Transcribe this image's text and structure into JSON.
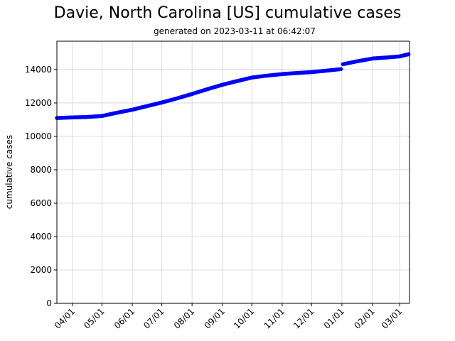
{
  "chart_data": {
    "type": "line",
    "title": "Davie, North Carolina [US] cumulative cases",
    "subtitle": "generated on 2023-03-11 at 06:42:07",
    "xlabel": "",
    "ylabel": "cumulative cases",
    "ylim": [
      0,
      15700
    ],
    "yticks": [
      0,
      2000,
      4000,
      6000,
      8000,
      10000,
      12000,
      14000
    ],
    "xticks": [
      "04/01",
      "05/01",
      "06/01",
      "07/01",
      "08/01",
      "09/01",
      "10/01",
      "11/01",
      "12/01",
      "01/01",
      "02/01",
      "03/01"
    ],
    "grid": true,
    "legend": null,
    "color": "#0000ff",
    "marker": "circle",
    "series": [
      {
        "name": "cumulative cases",
        "x": [
          "2022-03-16",
          "2022-04-01",
          "2022-04-15",
          "2022-05-01",
          "2022-05-15",
          "2022-06-01",
          "2022-06-15",
          "2022-07-01",
          "2022-07-15",
          "2022-08-01",
          "2022-08-15",
          "2022-09-01",
          "2022-09-15",
          "2022-10-01",
          "2022-10-15",
          "2022-11-01",
          "2022-11-15",
          "2022-12-01",
          "2022-12-15",
          "2022-12-31",
          "2023-01-02",
          "2023-01-15",
          "2023-02-01",
          "2023-02-15",
          "2023-03-01",
          "2023-03-10"
        ],
        "values": [
          11100,
          11140,
          11160,
          11220,
          11400,
          11600,
          11800,
          12030,
          12250,
          12540,
          12800,
          13090,
          13300,
          13520,
          13630,
          13730,
          13790,
          13850,
          13930,
          14030,
          14320,
          14480,
          14660,
          14720,
          14790,
          14920
        ]
      }
    ]
  }
}
